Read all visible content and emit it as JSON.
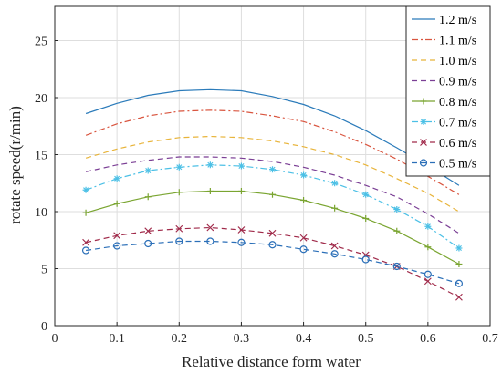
{
  "chart_data": {
    "type": "line",
    "title": "",
    "xlabel": "Relative distance form water",
    "ylabel": "rotate speed(r/min)",
    "xlim": [
      0,
      0.7
    ],
    "ylim": [
      0,
      28
    ],
    "xticks": [
      "0",
      "0.1",
      "0.2",
      "0.3",
      "0.4",
      "0.5",
      "0.6",
      "0.7"
    ],
    "yticks": [
      "0",
      "5",
      "10",
      "15",
      "20",
      "25"
    ],
    "grid": true,
    "legend_position": "top-right",
    "x": [
      0.05,
      0.1,
      0.15,
      0.2,
      0.25,
      0.3,
      0.35,
      0.4,
      0.45,
      0.5,
      0.55,
      0.6,
      0.65
    ],
    "series": [
      {
        "name": "1.2 m/s",
        "color": "#2b7bba",
        "dash": "solid",
        "marker": "none",
        "values": [
          18.6,
          19.5,
          20.2,
          20.6,
          20.7,
          20.6,
          20.1,
          19.4,
          18.4,
          17.1,
          15.6,
          14.0,
          12.3
        ]
      },
      {
        "name": "1.1 m/s",
        "color": "#d9553f",
        "dash": "dashdot",
        "marker": "none",
        "values": [
          16.7,
          17.7,
          18.4,
          18.8,
          18.9,
          18.8,
          18.4,
          17.9,
          17.0,
          15.9,
          14.6,
          13.1,
          11.5
        ]
      },
      {
        "name": "1.0 m/s",
        "color": "#e8b43a",
        "dash": "dashed",
        "marker": "none",
        "values": [
          14.7,
          15.5,
          16.1,
          16.5,
          16.6,
          16.5,
          16.2,
          15.7,
          15.0,
          14.1,
          12.9,
          11.6,
          10.0
        ]
      },
      {
        "name": "0.9 m/s",
        "color": "#7b3f95",
        "dash": "dashed",
        "marker": "none",
        "values": [
          13.5,
          14.1,
          14.5,
          14.8,
          14.8,
          14.7,
          14.4,
          13.9,
          13.2,
          12.3,
          11.3,
          9.8,
          8.1
        ]
      },
      {
        "name": "0.8 m/s",
        "color": "#7aa531",
        "dash": "solid",
        "marker": "plus",
        "values": [
          9.9,
          10.7,
          11.3,
          11.7,
          11.8,
          11.8,
          11.5,
          11.0,
          10.3,
          9.4,
          8.3,
          6.9,
          5.4
        ]
      },
      {
        "name": "0.7 m/s",
        "color": "#4cc0e6",
        "dash": "dashdot",
        "marker": "star",
        "values": [
          11.9,
          12.9,
          13.6,
          13.9,
          14.1,
          14.0,
          13.7,
          13.2,
          12.5,
          11.5,
          10.2,
          8.7,
          6.8
        ]
      },
      {
        "name": "0.6 m/s",
        "color": "#a02a4a",
        "dash": "dashed",
        "marker": "x",
        "values": [
          7.3,
          7.9,
          8.3,
          8.5,
          8.6,
          8.4,
          8.1,
          7.7,
          7.0,
          6.2,
          5.2,
          3.9,
          2.5
        ]
      },
      {
        "name": "0.5 m/s",
        "color": "#2b6fb8",
        "dash": "dashed",
        "marker": "circle",
        "values": [
          6.6,
          7.0,
          7.2,
          7.4,
          7.4,
          7.3,
          7.1,
          6.7,
          6.3,
          5.8,
          5.2,
          4.5,
          3.7
        ]
      }
    ]
  }
}
